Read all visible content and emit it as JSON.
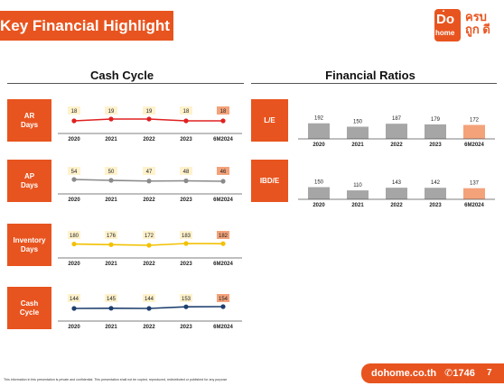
{
  "header": {
    "title": "Key Financial Highlight",
    "logo_text": "Do",
    "logo_sub": "home",
    "logo_tag": "ครบ ถูก ดี"
  },
  "colors": {
    "brand": "#e8541f",
    "ar_line": "#e02020",
    "ap_line": "#8a8a8a",
    "inventory_line": "#f2c100",
    "cash_line": "#1f3f6e",
    "label_fill": "#fff2cc",
    "highlight_fill": "#f4a27a",
    "bar_gray": "#a6a6a6",
    "bar_highlight": "#f4a27a"
  },
  "sections": {
    "cash_cycle_title": "Cash Cycle",
    "ratios_title": "Financial Ratios"
  },
  "footer": {
    "disclaimer": "This information in this presentation is private and confidential. This presentation shall not be copied, reproduced, redistributed or published for any purpose",
    "url": "dohome.co.th",
    "phone": "1746",
    "page": "7"
  },
  "chart_data": [
    {
      "id": "ar",
      "type": "line",
      "label": "AR\nDays",
      "categories": [
        "2020",
        "2021",
        "2022",
        "2023",
        "6M2024"
      ],
      "values": [
        18,
        19,
        19,
        18,
        18
      ]
    },
    {
      "id": "ap",
      "type": "line",
      "label": "AP\nDays",
      "categories": [
        "2020",
        "2021",
        "2022",
        "2023",
        "6M2024"
      ],
      "values": [
        54,
        50,
        47,
        48,
        46
      ]
    },
    {
      "id": "inventory",
      "type": "line",
      "label": "Inventory\nDays",
      "categories": [
        "2020",
        "2021",
        "2022",
        "2023",
        "6M2024"
      ],
      "values": [
        180,
        176,
        172,
        183,
        182
      ]
    },
    {
      "id": "cash",
      "type": "line",
      "label": "Cash\nCycle",
      "categories": [
        "2020",
        "2021",
        "2022",
        "2023",
        "6M2024"
      ],
      "values": [
        144,
        145,
        144,
        153,
        154
      ]
    },
    {
      "id": "le",
      "type": "bar",
      "label": "L/E",
      "categories": [
        "2020",
        "2021",
        "2022",
        "2023",
        "6M2024"
      ],
      "values": [
        192,
        150,
        187,
        179,
        172
      ]
    },
    {
      "id": "ibde",
      "type": "bar",
      "label": "IBD/E",
      "categories": [
        "2020",
        "2021",
        "2022",
        "2023",
        "6M2024"
      ],
      "values": [
        150,
        110,
        143,
        142,
        137
      ]
    }
  ]
}
